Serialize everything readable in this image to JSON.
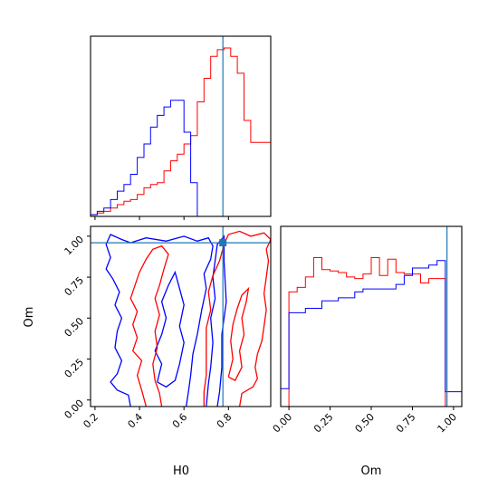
{
  "chart_data": {
    "type": "corner",
    "parameters": [
      "H0",
      "Om"
    ],
    "truth": {
      "H0": 0.775,
      "Om": 0.96
    },
    "truth_color": "#1f77b4",
    "series_colors": {
      "a": "#ff0000",
      "b": "#0000ff"
    },
    "panels": {
      "h0_hist": {
        "xlim": [
          0.18,
          0.99
        ],
        "bin_edges": [
          0.18,
          0.21,
          0.24,
          0.27,
          0.3,
          0.33,
          0.36,
          0.39,
          0.42,
          0.45,
          0.48,
          0.51,
          0.54,
          0.57,
          0.6,
          0.63,
          0.66,
          0.69,
          0.72,
          0.75,
          0.78,
          0.81,
          0.84,
          0.87,
          0.9,
          0.93,
          0.96,
          0.99
        ],
        "series": [
          {
            "key": "a",
            "values": [
              0.01,
              0.02,
              0.03,
              0.05,
              0.07,
              0.09,
              0.1,
              0.13,
              0.17,
              0.19,
              0.2,
              0.27,
              0.33,
              0.37,
              0.43,
              0.48,
              0.68,
              0.82,
              0.95,
              0.99,
              1.0,
              0.95,
              0.85,
              0.57,
              0.44,
              0.44,
              0.44
            ]
          },
          {
            "key": "b",
            "values": [
              0.01,
              0.03,
              0.05,
              0.1,
              0.15,
              0.19,
              0.25,
              0.35,
              0.43,
              0.53,
              0.6,
              0.65,
              0.69,
              0.69,
              0.5,
              0.2,
              0.0,
              0.0,
              0.0,
              0.0,
              0.0,
              0.0,
              0.0,
              0.0,
              0.0,
              0.0,
              0.0
            ]
          }
        ]
      },
      "om_hist": {
        "xlim": [
          -0.05,
          1.05
        ],
        "xticks": [
          0.0,
          0.25,
          0.5,
          0.75,
          1.0
        ],
        "xtick_labels": [
          "0.00",
          "0.25",
          "0.50",
          "0.75",
          "1.00"
        ],
        "bin_edges": [
          -0.05,
          0.0,
          0.05,
          0.1,
          0.15,
          0.2,
          0.25,
          0.3,
          0.35,
          0.4,
          0.45,
          0.5,
          0.55,
          0.6,
          0.65,
          0.7,
          0.75,
          0.8,
          0.85,
          0.9,
          0.95,
          1.0,
          1.05
        ],
        "series": [
          {
            "key": "a",
            "values": [
              0.0,
              0.77,
              0.8,
              0.87,
              1.0,
              0.92,
              0.91,
              0.9,
              0.87,
              0.86,
              0.89,
              1.0,
              0.88,
              0.99,
              0.9,
              0.89,
              0.89,
              0.83,
              0.86,
              0.86,
              0.0,
              0.0
            ]
          },
          {
            "key": "b",
            "values": [
              0.12,
              0.63,
              0.63,
              0.66,
              0.66,
              0.71,
              0.71,
              0.73,
              0.73,
              0.77,
              0.79,
              0.79,
              0.79,
              0.79,
              0.82,
              0.88,
              0.93,
              0.93,
              0.95,
              0.98,
              0.1,
              0.1
            ]
          }
        ]
      },
      "joint": {
        "xlim": [
          0.18,
          0.99
        ],
        "ylim": [
          -0.04,
          1.06
        ],
        "xticks": [
          0.2,
          0.4,
          0.6,
          0.8
        ],
        "xtick_labels": [
          "0.2",
          "0.4",
          "0.6",
          "0.8"
        ],
        "yticks": [
          0.0,
          0.25,
          0.5,
          0.75,
          1.0
        ],
        "ytick_labels": [
          "0.00",
          "0.25",
          "0.50",
          "0.75",
          "1.00"
        ],
        "xlabel": "H0",
        "ylabel": "Om",
        "contours": [
          {
            "key": "b",
            "points": [
              [
                0.36,
                -0.04
              ],
              [
                0.35,
                0.03
              ],
              [
                0.3,
                0.06
              ],
              [
                0.27,
                0.11
              ],
              [
                0.3,
                0.16
              ],
              [
                0.32,
                0.24
              ],
              [
                0.29,
                0.32
              ],
              [
                0.3,
                0.42
              ],
              [
                0.32,
                0.5
              ],
              [
                0.29,
                0.58
              ],
              [
                0.31,
                0.66
              ],
              [
                0.28,
                0.74
              ],
              [
                0.25,
                0.8
              ],
              [
                0.27,
                0.87
              ],
              [
                0.25,
                0.95
              ],
              [
                0.27,
                1.01
              ],
              [
                0.32,
                0.98
              ],
              [
                0.36,
                0.96
              ],
              [
                0.43,
                0.99
              ],
              [
                0.52,
                0.97
              ],
              [
                0.6,
                1.0
              ],
              [
                0.66,
                0.97
              ],
              [
                0.71,
                0.99
              ],
              [
                0.73,
                0.94
              ],
              [
                0.72,
                0.86
              ],
              [
                0.69,
                0.77
              ],
              [
                0.7,
                0.68
              ],
              [
                0.68,
                0.55
              ],
              [
                0.66,
                0.4
              ],
              [
                0.64,
                0.28
              ],
              [
                0.63,
                0.15
              ],
              [
                0.62,
                0.05
              ],
              [
                0.61,
                -0.04
              ]
            ]
          },
          {
            "key": "b",
            "points": [
              [
                0.48,
                0.11
              ],
              [
                0.5,
                0.22
              ],
              [
                0.47,
                0.3
              ],
              [
                0.5,
                0.4
              ],
              [
                0.52,
                0.5
              ],
              [
                0.5,
                0.6
              ],
              [
                0.53,
                0.7
              ],
              [
                0.56,
                0.78
              ],
              [
                0.58,
                0.68
              ],
              [
                0.6,
                0.58
              ],
              [
                0.58,
                0.45
              ],
              [
                0.6,
                0.35
              ],
              [
                0.58,
                0.22
              ],
              [
                0.56,
                0.12
              ],
              [
                0.52,
                0.08
              ],
              [
                0.48,
                0.11
              ]
            ]
          },
          {
            "key": "b",
            "points": [
              [
                0.7,
                -0.04
              ],
              [
                0.71,
                0.1
              ],
              [
                0.72,
                0.2
              ],
              [
                0.73,
                0.35
              ],
              [
                0.72,
                0.5
              ],
              [
                0.74,
                0.62
              ],
              [
                0.73,
                0.75
              ],
              [
                0.74,
                0.85
              ],
              [
                0.75,
                0.95
              ],
              [
                0.78,
                1.0
              ],
              [
                0.78,
                0.85
              ],
              [
                0.79,
                0.6
              ],
              [
                0.77,
                0.4
              ],
              [
                0.77,
                0.2
              ],
              [
                0.76,
                0.05
              ],
              [
                0.75,
                -0.04
              ]
            ]
          },
          {
            "key": "a",
            "points": [
              [
                0.43,
                -0.04
              ],
              [
                0.41,
                0.06
              ],
              [
                0.39,
                0.15
              ],
              [
                0.41,
                0.24
              ],
              [
                0.37,
                0.3
              ],
              [
                0.39,
                0.38
              ],
              [
                0.37,
                0.46
              ],
              [
                0.39,
                0.54
              ],
              [
                0.36,
                0.62
              ],
              [
                0.38,
                0.7
              ],
              [
                0.4,
                0.78
              ],
              [
                0.43,
                0.86
              ],
              [
                0.46,
                0.92
              ],
              [
                0.5,
                0.94
              ],
              [
                0.53,
                0.89
              ],
              [
                0.51,
                0.8
              ],
              [
                0.49,
                0.7
              ],
              [
                0.47,
                0.62
              ],
              [
                0.49,
                0.52
              ],
              [
                0.47,
                0.42
              ],
              [
                0.48,
                0.32
              ],
              [
                0.46,
                0.22
              ],
              [
                0.47,
                0.12
              ],
              [
                0.49,
                0.04
              ],
              [
                0.5,
                -0.04
              ]
            ]
          },
          {
            "key": "a",
            "points": [
              [
                0.85,
                -0.04
              ],
              [
                0.86,
                0.04
              ],
              [
                0.91,
                0.08
              ],
              [
                0.93,
                0.13
              ],
              [
                0.92,
                0.2
              ],
              [
                0.93,
                0.28
              ],
              [
                0.95,
                0.36
              ],
              [
                0.96,
                0.45
              ],
              [
                0.97,
                0.55
              ],
              [
                0.96,
                0.65
              ],
              [
                0.97,
                0.75
              ],
              [
                0.98,
                0.85
              ],
              [
                0.97,
                0.92
              ],
              [
                0.99,
                0.98
              ],
              [
                0.96,
                1.02
              ],
              [
                0.9,
                1.0
              ],
              [
                0.85,
                1.03
              ],
              [
                0.8,
                1.01
              ],
              [
                0.78,
                0.95
              ],
              [
                0.76,
                0.85
              ],
              [
                0.73,
                0.76
              ],
              [
                0.71,
                0.66
              ],
              [
                0.72,
                0.55
              ],
              [
                0.7,
                0.44
              ],
              [
                0.7,
                0.3
              ],
              [
                0.7,
                0.15
              ],
              [
                0.69,
                0.05
              ],
              [
                0.69,
                -0.04
              ]
            ]
          },
          {
            "key": "a",
            "points": [
              [
                0.8,
                0.14
              ],
              [
                0.82,
                0.25
              ],
              [
                0.81,
                0.36
              ],
              [
                0.82,
                0.46
              ],
              [
                0.84,
                0.56
              ],
              [
                0.86,
                0.64
              ],
              [
                0.89,
                0.68
              ],
              [
                0.88,
                0.6
              ],
              [
                0.86,
                0.5
              ],
              [
                0.87,
                0.4
              ],
              [
                0.85,
                0.3
              ],
              [
                0.86,
                0.2
              ],
              [
                0.83,
                0.12
              ],
              [
                0.8,
                0.14
              ]
            ]
          }
        ]
      }
    }
  }
}
